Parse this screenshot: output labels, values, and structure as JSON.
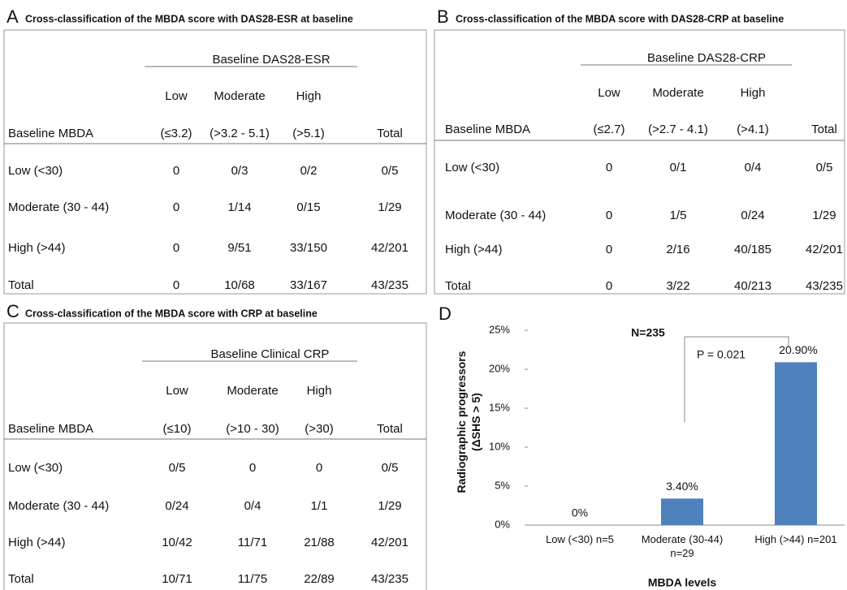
{
  "tables": [
    {
      "letter": "A",
      "title": "Cross-classification of the MBDA score with DAS28-ESR at baseline",
      "group_header": "Baseline DAS28-ESR",
      "header_top": [
        "Low",
        "Moderate",
        "High"
      ],
      "header": [
        "Baseline MBDA",
        "(≤3.2)",
        "(>3.2 - 5.1)",
        "(>5.1)",
        "Total"
      ],
      "rows": [
        [
          "Low (<30)",
          "0",
          "0/3",
          "0/2",
          "0/5"
        ],
        [
          "Moderate (30 - 44)",
          "0",
          "1/14",
          "0/15",
          "1/29"
        ],
        [
          "High (>44)",
          "0",
          "9/51",
          "33/150",
          "42/201"
        ],
        [
          "Total",
          "0",
          "10/68",
          "33/167",
          "43/235"
        ]
      ]
    },
    {
      "letter": "B",
      "title": "Cross-classification of the MBDA score with DAS28-CRP at baseline",
      "group_header": "Baseline DAS28-CRP",
      "header_top": [
        "Low",
        "Moderate",
        "High"
      ],
      "header": [
        "Baseline MBDA",
        "(≤2.7)",
        "(>2.7 - 4.1)",
        "(>4.1)",
        "Total"
      ],
      "rows": [
        [
          "Low (<30)",
          "0",
          "0/1",
          "0/4",
          "0/5"
        ],
        [
          "Moderate (30 - 44)",
          "0",
          "1/5",
          "0/24",
          "1/29"
        ],
        [
          "High (>44)",
          "0",
          "2/16",
          "40/185",
          "42/201"
        ],
        [
          "Total",
          "0",
          "3/22",
          "40/213",
          "43/235"
        ]
      ]
    },
    {
      "letter": "C",
      "title": "Cross-classification of the MBDA score with CRP at baseline",
      "group_header": "Baseline Clinical CRP",
      "header_top": [
        "Low",
        "Moderate",
        "High"
      ],
      "header": [
        "Baseline MBDA",
        "(≤10)",
        "(>10 - 30)",
        "(>30)",
        "Total"
      ],
      "rows": [
        [
          "Low (<30)",
          "0/5",
          "0",
          "0",
          "0/5"
        ],
        [
          "Moderate (30 - 44)",
          "0/24",
          "0/4",
          "1/1",
          "1/29"
        ],
        [
          "High (>44)",
          "10/42",
          "11/71",
          "21/88",
          "42/201"
        ],
        [
          "Total",
          "10/71",
          "11/75",
          "22/89",
          "43/235"
        ]
      ]
    }
  ],
  "chart_data": {
    "type": "bar",
    "letter": "D",
    "title": "N=235",
    "categories": [
      "Low (<30) n=5",
      "Moderate (30-44) n=29",
      "High (>44) n=201"
    ],
    "values": [
      0,
      3.4,
      20.9
    ],
    "value_labels": [
      "0%",
      "3.40%",
      "20.90%"
    ],
    "color": "#4f81bd",
    "ylim": [
      0,
      25
    ],
    "yticks": [
      {
        "value": 0,
        "label": "0%"
      },
      {
        "value": 5,
        "label": "5%"
      },
      {
        "value": 10,
        "label": "10%"
      },
      {
        "value": 15,
        "label": "15%"
      },
      {
        "value": 20,
        "label": "20%"
      },
      {
        "value": 25,
        "label": "25%"
      }
    ],
    "ylabel": [
      "Radiographic progressors",
      "(ΔSHS > 5)"
    ],
    "xlabel": "MBDA levels",
    "annotation": "P = 0.021"
  }
}
